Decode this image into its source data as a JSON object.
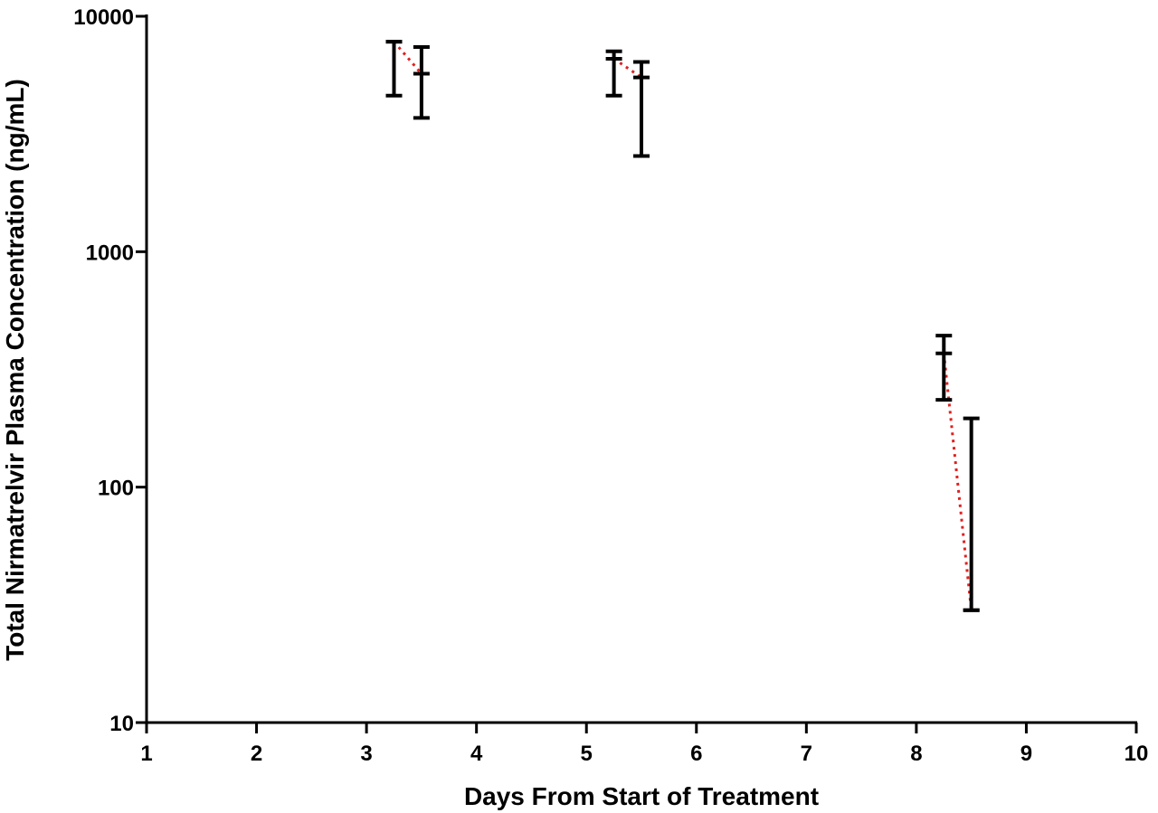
{
  "chart_data": {
    "type": "scatter",
    "title": "",
    "xlabel": "Days From Start of Treatment",
    "ylabel": "Total Nirmatrelvir Plasma Concentration (ng/mL)",
    "xlim": [
      1,
      10
    ],
    "ylim": [
      10,
      10000
    ],
    "yscale": "log",
    "grid": false,
    "x_ticks": [
      "1",
      "2",
      "3",
      "4",
      "5",
      "6",
      "7",
      "8",
      "9",
      "10"
    ],
    "y_ticks": [
      "10",
      "100",
      "1000",
      "10000"
    ],
    "series": [
      {
        "marker": "error-bar",
        "connector_color": "#e02020",
        "points": [
          {
            "x": 3.25,
            "mean": 7800,
            "low": 4600,
            "high": 7800
          },
          {
            "x": 3.5,
            "mean": 5700,
            "low": 3700,
            "high": 7400
          },
          {
            "x": 5.25,
            "mean": 6600,
            "low": 4600,
            "high": 7100
          },
          {
            "x": 5.5,
            "mean": 5500,
            "low": 2550,
            "high": 6400
          },
          {
            "x": 8.25,
            "mean": 370,
            "low": 235,
            "high": 440
          },
          {
            "x": 8.5,
            "mean": 30,
            "low": 30,
            "high": 196
          }
        ],
        "segments": [
          [
            0,
            1
          ],
          [
            2,
            3
          ],
          [
            4,
            5
          ]
        ]
      }
    ]
  }
}
